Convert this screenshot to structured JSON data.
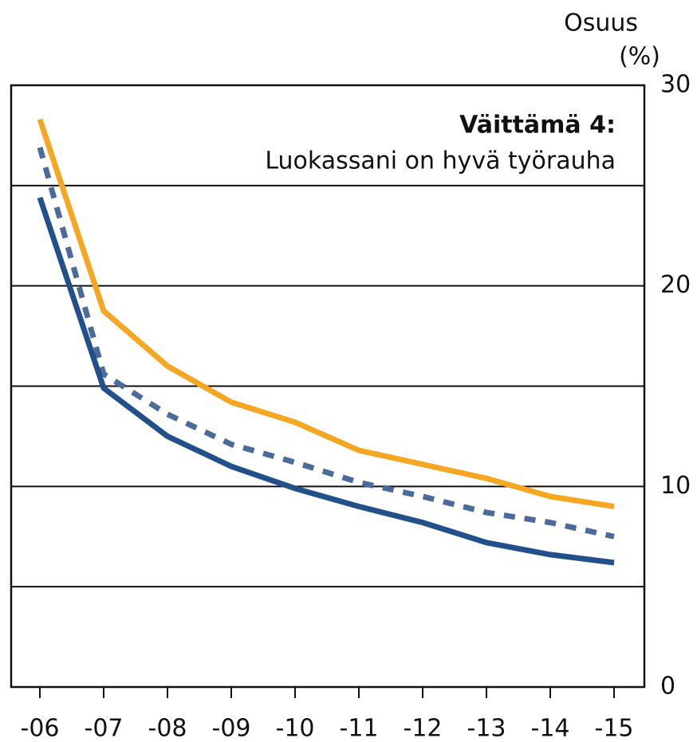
{
  "chart_data": {
    "type": "line",
    "title": "Väittämä 4:",
    "subtitle": "Luokassani on hyvä työrauha",
    "ylabel": [
      "Osuus",
      "(%)"
    ],
    "categories": [
      "-06",
      "-07",
      "-08",
      "-09",
      "-10",
      "-11",
      "-12",
      "-13",
      "-14",
      "-15"
    ],
    "series": [
      {
        "color": "#f5a623",
        "style": "solid",
        "values": [
          28.3,
          18.75,
          16.0,
          14.2,
          13.2,
          11.8,
          11.1,
          10.4,
          9.5,
          9.0
        ]
      },
      {
        "color": "#4a6b9c",
        "style": "dashed",
        "values": [
          26.9,
          15.6,
          13.6,
          12.1,
          11.2,
          10.2,
          9.5,
          8.7,
          8.2,
          7.5
        ]
      },
      {
        "color": "#22508a",
        "style": "solid",
        "values": [
          24.4,
          14.9,
          12.5,
          11.0,
          9.9,
          9.0,
          8.2,
          7.2,
          6.6,
          6.2
        ]
      }
    ],
    "ylim": [
      0,
      30
    ],
    "yticks": [
      0,
      10,
      20,
      30
    ],
    "minor_yticks": [
      5,
      15,
      25
    ],
    "yaxis_side": "right",
    "grid": true
  }
}
